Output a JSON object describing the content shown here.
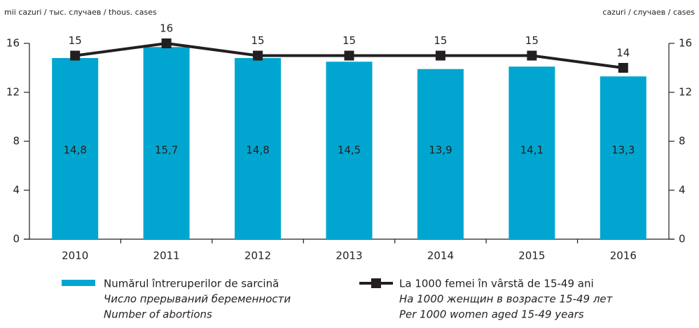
{
  "chart_data": {
    "type": "bar_line",
    "y_label": "mii cazuri / тыс. случаев / thous. cases",
    "y2_label": "cazuri / случаев / cases",
    "categories": [
      "2010",
      "2011",
      "2012",
      "2013",
      "2014",
      "2015",
      "2016"
    ],
    "series": [
      {
        "name": "Numărul întreruperilor de sarcină",
        "name_translations": [
          "Число прерываний беременности",
          "Number of abortions"
        ],
        "type": "bar",
        "color": "#00a6d0",
        "values": [
          14.8,
          15.7,
          14.8,
          14.5,
          13.9,
          14.1,
          13.3
        ],
        "value_labels": [
          "14,8",
          "15,7",
          "14,8",
          "14,5",
          "13,9",
          "14,1",
          "13,3"
        ]
      },
      {
        "name": "La 1000 femei în vârstă de 15-49 ani",
        "name_translations": [
          "На 1000 женщин в возрасте 15-49 лет",
          "Per 1000 women  aged 15-49 years"
        ],
        "type": "line",
        "axis": "y2",
        "color": "#231f20",
        "values": [
          15,
          16,
          15,
          15,
          15,
          15,
          14
        ]
      }
    ],
    "ylim": [
      0,
      16
    ],
    "yticks": [
      0,
      4,
      8,
      12,
      16
    ],
    "y2lim": [
      0,
      16
    ],
    "y2ticks": [
      0,
      4,
      8,
      12,
      16
    ]
  }
}
